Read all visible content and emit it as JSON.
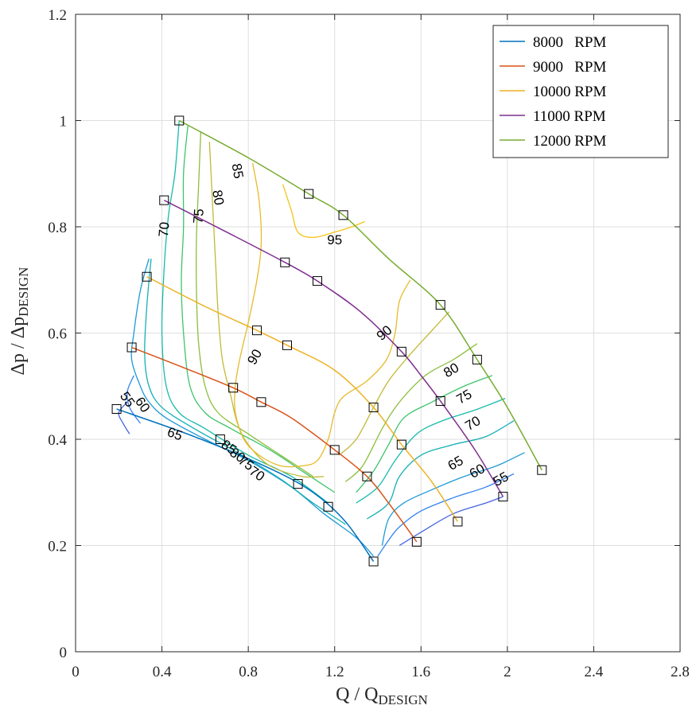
{
  "chart_data": {
    "type": "line",
    "title": "",
    "xlabel": {
      "main": "Q / Q",
      "sub": "DESIGN"
    },
    "ylabel": {
      "main": "Δp / Δp",
      "sub": "DESIGN"
    },
    "xlim": [
      0,
      2.8
    ],
    "ylim": [
      0,
      1.2
    ],
    "xticks": [
      0,
      0.4,
      0.8,
      1.2,
      1.6,
      2,
      2.4,
      2.8
    ],
    "xtick_labels": [
      "0",
      "0.4",
      "0.8",
      "1.2",
      "1.6",
      "2",
      "2.4",
      "2.8"
    ],
    "yticks": [
      0,
      0.2,
      0.4,
      0.6,
      0.8,
      1,
      1.2
    ],
    "ytick_labels": [
      "0",
      "0.2",
      "0.4",
      "0.6",
      "0.8",
      "1",
      "1.2"
    ],
    "grid": true,
    "legend_position": "top-right",
    "series": [
      {
        "name": "8000   RPM",
        "color": "#0072BD",
        "x": [
          0.19,
          0.55,
          0.9,
          1.1,
          1.25,
          1.38
        ],
        "y": [
          0.457,
          0.405,
          0.345,
          0.3,
          0.245,
          0.17
        ]
      },
      {
        "name": "9000   RPM",
        "color": "#D95319",
        "x": [
          0.26,
          0.5,
          0.73,
          0.86,
          1.0,
          1.2,
          1.35,
          1.45,
          1.58
        ],
        "y": [
          0.573,
          0.535,
          0.497,
          0.47,
          0.44,
          0.38,
          0.33,
          0.28,
          0.207
        ]
      },
      {
        "name": "10000 RPM",
        "color": "#EDB120",
        "x": [
          0.33,
          0.6,
          0.84,
          0.98,
          1.2,
          1.38,
          1.51,
          1.65,
          1.77
        ],
        "y": [
          0.706,
          0.65,
          0.605,
          0.577,
          0.53,
          0.46,
          0.39,
          0.32,
          0.245
        ]
      },
      {
        "name": "11000 RPM",
        "color": "#7E2F8E",
        "x": [
          0.41,
          0.7,
          0.97,
          1.12,
          1.32,
          1.51,
          1.6,
          1.69,
          1.85,
          1.98
        ],
        "y": [
          0.85,
          0.79,
          0.733,
          0.698,
          0.64,
          0.565,
          0.52,
          0.472,
          0.38,
          0.292
        ]
      },
      {
        "name": "12000 RPM",
        "color": "#77AC30",
        "x": [
          0.48,
          0.8,
          1.08,
          1.24,
          1.45,
          1.69,
          1.86,
          2.0,
          2.16
        ],
        "y": [
          1.0,
          0.93,
          0.862,
          0.822,
          0.74,
          0.653,
          0.55,
          0.46,
          0.342
        ]
      }
    ],
    "markers": {
      "shape": "square",
      "points": [
        [
          0.48,
          1.0
        ],
        [
          1.08,
          0.862
        ],
        [
          1.24,
          0.822
        ],
        [
          1.69,
          0.653
        ],
        [
          1.86,
          0.55
        ],
        [
          2.16,
          0.342
        ],
        [
          0.41,
          0.85
        ],
        [
          0.97,
          0.733
        ],
        [
          1.12,
          0.698
        ],
        [
          1.51,
          0.565
        ],
        [
          1.69,
          0.472
        ],
        [
          1.98,
          0.292
        ],
        [
          0.33,
          0.706
        ],
        [
          0.84,
          0.605
        ],
        [
          0.98,
          0.577
        ],
        [
          1.38,
          0.46
        ],
        [
          1.51,
          0.39
        ],
        [
          1.77,
          0.245
        ],
        [
          0.26,
          0.573
        ],
        [
          0.73,
          0.497
        ],
        [
          0.86,
          0.47
        ],
        [
          1.2,
          0.38
        ],
        [
          1.35,
          0.33
        ],
        [
          1.58,
          0.207
        ],
        [
          0.19,
          0.457
        ],
        [
          0.67,
          0.4
        ],
        [
          1.03,
          0.316
        ],
        [
          1.17,
          0.273
        ],
        [
          1.38,
          0.17
        ]
      ]
    },
    "contour_lines": [
      {
        "color": "#4665E0",
        "points": [
          [
            0.24,
            0.47
          ],
          [
            0.2,
            0.45
          ],
          [
            0.22,
            0.43
          ],
          [
            0.25,
            0.41
          ]
        ]
      },
      {
        "color": "#4665E0",
        "points": [
          [
            1.98,
            0.292
          ],
          [
            1.9,
            0.28
          ],
          [
            1.75,
            0.26
          ],
          [
            1.6,
            0.225
          ],
          [
            1.5,
            0.2
          ]
        ]
      },
      {
        "color": "#3182F0",
        "points": [
          [
            0.27,
            0.52
          ],
          [
            0.24,
            0.49
          ],
          [
            0.25,
            0.46
          ],
          [
            0.3,
            0.43
          ]
        ]
      },
      {
        "color": "#3182F0",
        "points": [
          [
            2.03,
            0.335
          ],
          [
            1.9,
            0.31
          ],
          [
            1.75,
            0.29
          ],
          [
            1.6,
            0.265
          ],
          [
            1.5,
            0.235
          ],
          [
            1.45,
            0.21
          ],
          [
            1.4,
            0.18
          ]
        ]
      },
      {
        "color": "#1E9AD8",
        "points": [
          [
            0.34,
            0.74
          ],
          [
            0.3,
            0.68
          ],
          [
            0.27,
            0.6
          ],
          [
            0.26,
            0.55
          ],
          [
            0.3,
            0.5
          ],
          [
            0.34,
            0.47
          ],
          [
            0.42,
            0.44
          ],
          [
            0.6,
            0.4
          ],
          [
            0.8,
            0.36
          ],
          [
            1.0,
            0.31
          ],
          [
            1.15,
            0.26
          ],
          [
            1.3,
            0.215
          ],
          [
            1.38,
            0.18
          ]
        ]
      },
      {
        "color": "#1E9AD8",
        "points": [
          [
            2.08,
            0.375
          ],
          [
            1.95,
            0.35
          ],
          [
            1.8,
            0.33
          ],
          [
            1.65,
            0.305
          ],
          [
            1.52,
            0.28
          ],
          [
            1.45,
            0.25
          ],
          [
            1.42,
            0.2
          ]
        ]
      },
      {
        "color": "#14B0B6",
        "points": [
          [
            0.35,
            0.74
          ],
          [
            0.33,
            0.65
          ],
          [
            0.32,
            0.56
          ],
          [
            0.34,
            0.5
          ],
          [
            0.4,
            0.46
          ],
          [
            0.55,
            0.42
          ],
          [
            0.75,
            0.375
          ],
          [
            0.95,
            0.325
          ],
          [
            1.1,
            0.28
          ],
          [
            1.25,
            0.24
          ]
        ]
      },
      {
        "color": "#14B0B6",
        "points": [
          [
            2.03,
            0.435
          ],
          [
            1.9,
            0.405
          ],
          [
            1.75,
            0.39
          ],
          [
            1.6,
            0.37
          ],
          [
            1.5,
            0.33
          ],
          [
            1.45,
            0.28
          ],
          [
            1.35,
            0.25
          ]
        ]
      },
      {
        "color": "#17BBAA",
        "points": [
          [
            0.48,
            1.0
          ],
          [
            0.46,
            0.9
          ],
          [
            0.43,
            0.82
          ],
          [
            0.41,
            0.72
          ],
          [
            0.4,
            0.6
          ],
          [
            0.42,
            0.5
          ],
          [
            0.48,
            0.45
          ],
          [
            0.6,
            0.42
          ],
          [
            0.8,
            0.37
          ],
          [
            1.0,
            0.33
          ],
          [
            1.17,
            0.28
          ]
        ]
      },
      {
        "color": "#17BBAA",
        "points": [
          [
            1.99,
            0.477
          ],
          [
            1.85,
            0.455
          ],
          [
            1.7,
            0.435
          ],
          [
            1.58,
            0.41
          ],
          [
            1.48,
            0.36
          ],
          [
            1.4,
            0.31
          ],
          [
            1.3,
            0.28
          ]
        ]
      },
      {
        "color": "#3DC46A",
        "points": [
          [
            0.52,
            0.99
          ],
          [
            0.5,
            0.9
          ],
          [
            0.5,
            0.8
          ],
          [
            0.49,
            0.7
          ],
          [
            0.5,
            0.6
          ],
          [
            0.53,
            0.5
          ],
          [
            0.6,
            0.45
          ],
          [
            0.72,
            0.42
          ],
          [
            0.9,
            0.38
          ],
          [
            1.05,
            0.34
          ],
          [
            1.2,
            0.3
          ]
        ]
      },
      {
        "color": "#3DC46A",
        "points": [
          [
            1.93,
            0.52
          ],
          [
            1.8,
            0.5
          ],
          [
            1.65,
            0.47
          ],
          [
            1.52,
            0.44
          ],
          [
            1.45,
            0.39
          ],
          [
            1.38,
            0.34
          ],
          [
            1.3,
            0.3
          ]
        ]
      },
      {
        "color": "#8CBE3C",
        "points": [
          [
            0.58,
            0.98
          ],
          [
            0.57,
            0.88
          ],
          [
            0.56,
            0.78
          ],
          [
            0.56,
            0.68
          ],
          [
            0.57,
            0.58
          ],
          [
            0.6,
            0.5
          ],
          [
            0.66,
            0.45
          ],
          [
            0.8,
            0.41
          ],
          [
            0.95,
            0.37
          ],
          [
            1.1,
            0.33
          ]
        ]
      },
      {
        "color": "#8CBE3C",
        "points": [
          [
            1.86,
            0.58
          ],
          [
            1.75,
            0.55
          ],
          [
            1.62,
            0.52
          ],
          [
            1.5,
            0.47
          ],
          [
            1.42,
            0.42
          ],
          [
            1.33,
            0.35
          ],
          [
            1.25,
            0.32
          ]
        ]
      },
      {
        "color": "#C1BA36",
        "points": [
          [
            0.62,
            0.96
          ],
          [
            0.63,
            0.88
          ],
          [
            0.64,
            0.8
          ],
          [
            0.65,
            0.72
          ],
          [
            0.66,
            0.64
          ],
          [
            0.68,
            0.55
          ],
          [
            0.72,
            0.48
          ],
          [
            0.75,
            0.43
          ],
          [
            0.8,
            0.39
          ],
          [
            0.9,
            0.35
          ],
          [
            1.05,
            0.33
          ],
          [
            1.15,
            0.33
          ]
        ]
      },
      {
        "color": "#C1BA36",
        "points": [
          [
            1.73,
            0.64
          ],
          [
            1.64,
            0.6
          ],
          [
            1.55,
            0.56
          ],
          [
            1.45,
            0.51
          ],
          [
            1.38,
            0.46
          ],
          [
            1.3,
            0.4
          ],
          [
            1.22,
            0.37
          ]
        ]
      },
      {
        "color": "#E7BB2A",
        "points": [
          [
            0.82,
            0.92
          ],
          [
            0.85,
            0.85
          ],
          [
            0.86,
            0.77
          ],
          [
            0.84,
            0.7
          ],
          [
            0.8,
            0.62
          ],
          [
            0.76,
            0.55
          ],
          [
            0.74,
            0.5
          ],
          [
            0.74,
            0.45
          ],
          [
            0.78,
            0.4
          ],
          [
            0.85,
            0.37
          ],
          [
            0.95,
            0.35
          ],
          [
            1.05,
            0.35
          ],
          [
            1.12,
            0.36
          ],
          [
            1.17,
            0.4
          ],
          [
            1.2,
            0.45
          ],
          [
            1.24,
            0.48
          ],
          [
            1.35,
            0.51
          ],
          [
            1.44,
            0.55
          ],
          [
            1.48,
            0.6
          ],
          [
            1.5,
            0.66
          ],
          [
            1.55,
            0.7
          ]
        ]
      },
      {
        "color": "#F2C414",
        "points": [
          [
            0.96,
            0.88
          ],
          [
            1.0,
            0.83
          ],
          [
            1.03,
            0.79
          ],
          [
            1.1,
            0.78
          ],
          [
            1.2,
            0.79
          ],
          [
            1.28,
            0.8
          ],
          [
            1.34,
            0.81
          ]
        ]
      }
    ],
    "contour_labels": [
      {
        "text": "55",
        "x": 0.24,
        "y": 0.475,
        "angle": 55
      },
      {
        "text": "60",
        "x": 0.31,
        "y": 0.465,
        "angle": 55
      },
      {
        "text": "65",
        "x": 0.46,
        "y": 0.41,
        "angle": 20
      },
      {
        "text": "70",
        "x": 0.41,
        "y": 0.795,
        "angle": -85
      },
      {
        "text": "75",
        "x": 0.57,
        "y": 0.82,
        "angle": -85
      },
      {
        "text": "80",
        "x": 0.66,
        "y": 0.855,
        "angle": 80
      },
      {
        "text": "85",
        "x": 0.75,
        "y": 0.905,
        "angle": 80
      },
      {
        "text": "90",
        "x": 0.83,
        "y": 0.555,
        "angle": -60
      },
      {
        "text": "95",
        "x": 1.2,
        "y": 0.775,
        "angle": 0
      },
      {
        "text": "90",
        "x": 1.43,
        "y": 0.6,
        "angle": -40
      },
      {
        "text": "80",
        "x": 1.74,
        "y": 0.53,
        "angle": -30
      },
      {
        "text": "75",
        "x": 1.8,
        "y": 0.48,
        "angle": -30
      },
      {
        "text": "70",
        "x": 1.84,
        "y": 0.43,
        "angle": -30
      },
      {
        "text": "65",
        "x": 1.76,
        "y": 0.355,
        "angle": -30
      },
      {
        "text": "60",
        "x": 1.86,
        "y": 0.34,
        "angle": -30
      },
      {
        "text": "55",
        "x": 1.97,
        "y": 0.325,
        "angle": -30
      },
      {
        "text": "85",
        "x": 0.71,
        "y": 0.385,
        "angle": 35
      },
      {
        "text": "80",
        "x": 0.75,
        "y": 0.37,
        "angle": 35
      },
      {
        "text": "75",
        "x": 0.79,
        "y": 0.355,
        "angle": 35
      },
      {
        "text": "70",
        "x": 0.84,
        "y": 0.335,
        "angle": 35
      }
    ]
  }
}
